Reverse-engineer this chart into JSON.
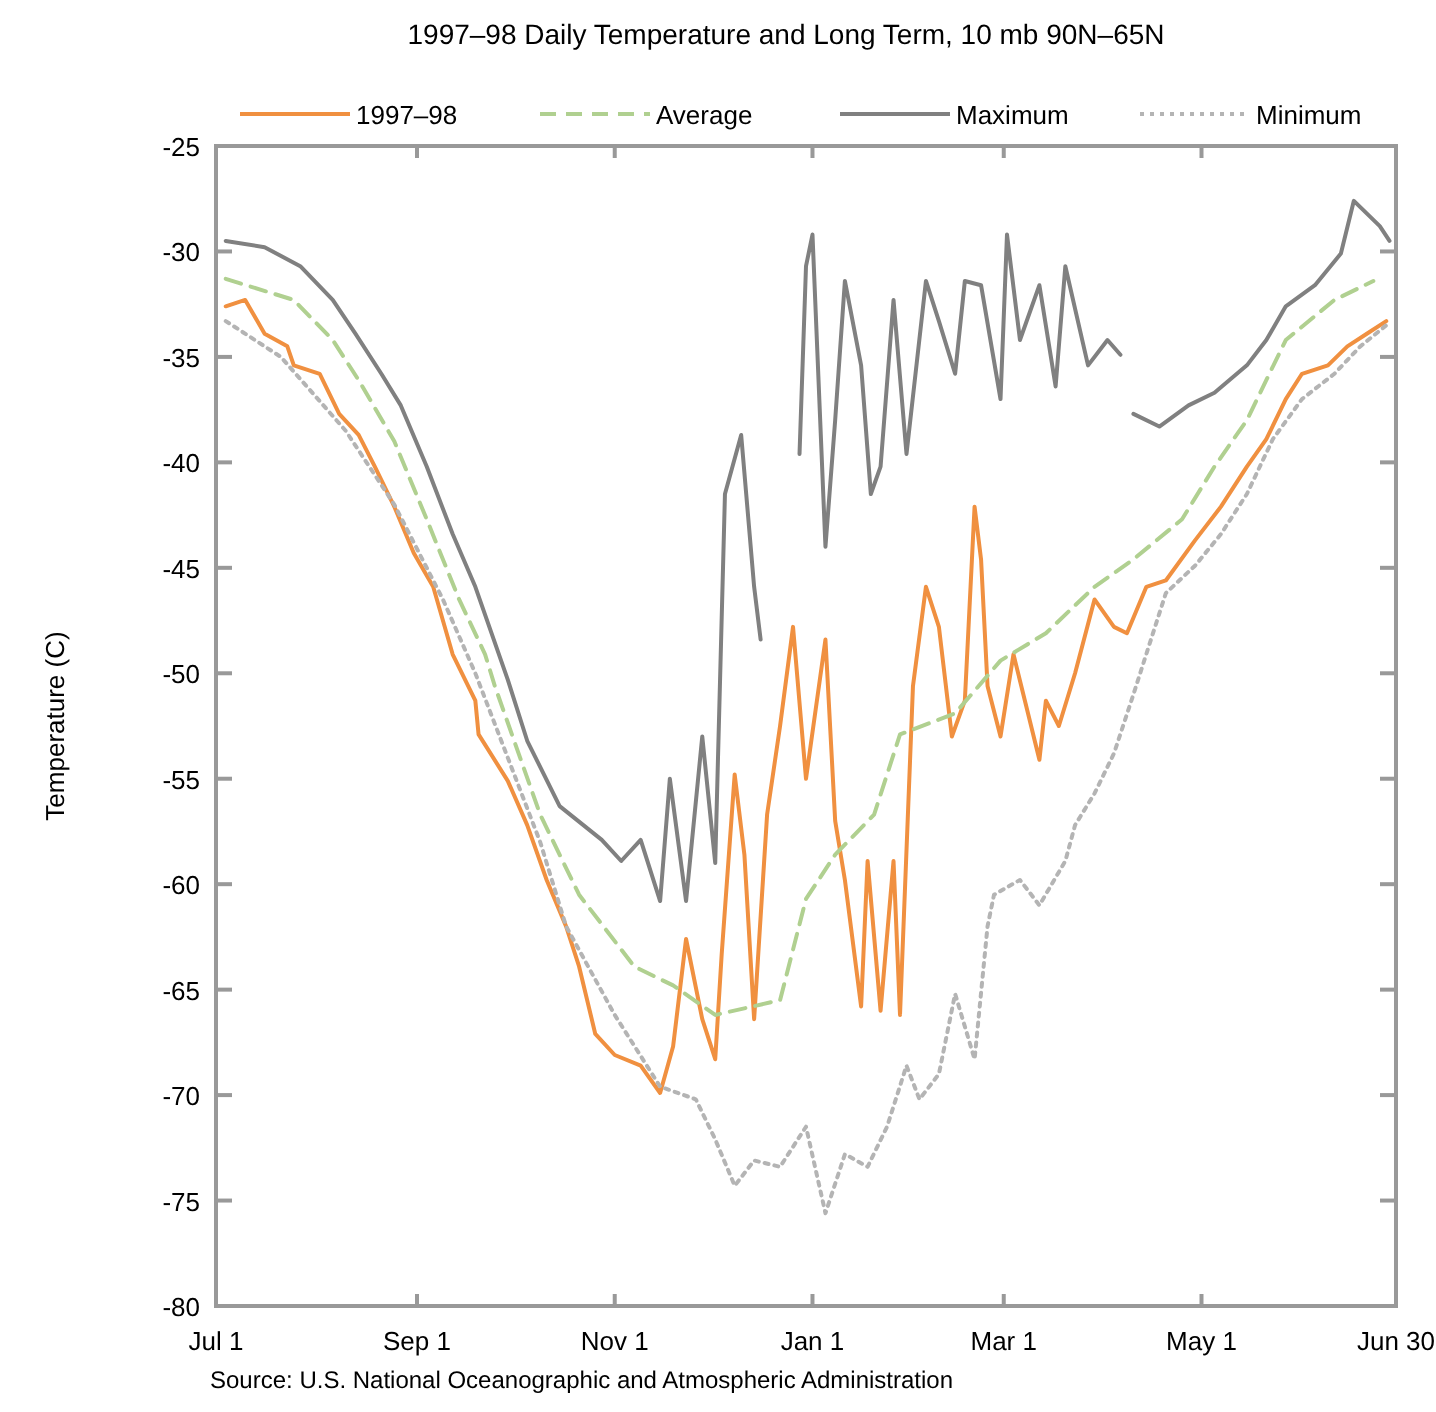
{
  "chart_data": {
    "type": "line",
    "title": "1997–98 Daily Temperature and Long Term,  10 mb   90N–65N",
    "ylabel": "Temperature (C)",
    "annotations": [
      "Source:  U.S. National Oceanographic and Atmospheric Administration"
    ],
    "xlim": [
      "1997-07-01",
      "1998-06-30"
    ],
    "xticks": [
      {
        "value": "1997-07-01",
        "label": "Jul 1"
      },
      {
        "value": "1997-09-01",
        "label": "Sep 1"
      },
      {
        "value": "1997-11-01",
        "label": "Nov 1"
      },
      {
        "value": "1998-01-01",
        "label": "Jan 1"
      },
      {
        "value": "1998-03-01",
        "label": "Mar 1"
      },
      {
        "value": "1998-05-01",
        "label": "May 1"
      },
      {
        "value": "1998-06-30",
        "label": "Jun 30"
      }
    ],
    "ylim": [
      -80,
      -25
    ],
    "yticks": [
      -80,
      -75,
      -70,
      -65,
      -60,
      -55,
      -50,
      -45,
      -40,
      -35,
      -30,
      -25
    ],
    "grid": false,
    "legend": "top",
    "marker": "none",
    "series": [
      {
        "name": "1997–98",
        "color": "#f09040",
        "line_style": "solid",
        "x": [
          "1997-07-04",
          "1997-07-10",
          "1997-07-16",
          "1997-07-23",
          "1997-07-25",
          "1997-08-02",
          "1997-08-08",
          "1997-08-14",
          "1997-08-19",
          "1997-08-25",
          "1997-08-31",
          "1997-09-06",
          "1997-09-12",
          "1997-09-19",
          "1997-09-20",
          "1997-09-29",
          "1997-10-05",
          "1997-10-11",
          "1997-10-17",
          "1997-10-21",
          "1997-10-26",
          "1997-11-01",
          "1997-11-09",
          "1997-11-15",
          "1997-11-19",
          "1997-11-23",
          "1997-11-28",
          "1997-12-02",
          "1997-12-04",
          "1997-12-08",
          "1997-12-11",
          "1997-12-14",
          "1997-12-18",
          "1997-12-22",
          "1997-12-26",
          "1997-12-30",
          "1998-01-05",
          "1998-01-08",
          "1998-01-11",
          "1998-01-16",
          "1998-01-18",
          "1998-01-22",
          "1998-01-26",
          "1998-01-28",
          "1998-02-01",
          "1998-02-05",
          "1998-02-09",
          "1998-02-13",
          "1998-02-17",
          "1998-02-20",
          "1998-02-22",
          "1998-02-24",
          "1998-02-28",
          "1998-03-04",
          "1998-03-08",
          "1998-03-12",
          "1998-03-14",
          "1998-03-18",
          "1998-03-23",
          "1998-03-29",
          "1998-04-04",
          "1998-04-08",
          "1998-04-14",
          "1998-04-20",
          "1998-04-29",
          "1998-05-07",
          "1998-05-15",
          "1998-05-21",
          "1998-05-27",
          "1998-06-01",
          "1998-06-09",
          "1998-06-15",
          "1998-06-21",
          "1998-06-27"
        ],
        "values": [
          -32.6,
          -32.3,
          -33.9,
          -34.5,
          -35.4,
          -35.8,
          -37.7,
          -38.7,
          -40.2,
          -42.1,
          -44.3,
          -45.9,
          -49.1,
          -51.3,
          -52.9,
          -55.1,
          -57.2,
          -59.8,
          -62,
          -63.9,
          -67.1,
          -68.1,
          -68.6,
          -69.9,
          -67.7,
          -62.6,
          -66.4,
          -68.3,
          -63.3,
          -54.8,
          -58.6,
          -66.4,
          -56.7,
          -52.5,
          -47.8,
          -55,
          -48.4,
          -57,
          -59.8,
          -65.8,
          -58.9,
          -66,
          -58.9,
          -66.2,
          -50.6,
          -45.9,
          -47.8,
          -53,
          -51.3,
          -42.1,
          -44.6,
          -50.6,
          -53,
          -49.1,
          -51.6,
          -54.1,
          -51.3,
          -52.5,
          -50,
          -46.5,
          -47.8,
          -48.1,
          -45.9,
          -45.6,
          -43.7,
          -42.1,
          -40.2,
          -38.9,
          -37,
          -35.8,
          -35.4,
          -34.5,
          -33.9,
          -33.3
        ]
      },
      {
        "name": "Average",
        "color": "#b0d090",
        "line_style": "dashed",
        "x": [
          "1997-07-04",
          "1997-07-25",
          "1997-08-06",
          "1997-08-14",
          "1997-08-25",
          "1997-09-04",
          "1997-09-14",
          "1997-09-22",
          "1997-09-25",
          "1997-10-09",
          "1997-10-21",
          "1997-11-07",
          "1997-11-19",
          "1997-12-02",
          "1997-12-22",
          "1997-12-30",
          "1998-01-08",
          "1998-01-20",
          "1998-01-28",
          "1998-02-14",
          "1998-02-28",
          "1998-03-14",
          "1998-03-29",
          "1998-04-10",
          "1998-04-25",
          "1998-05-05",
          "1998-05-15",
          "1998-05-27",
          "1998-06-11",
          "1998-06-23"
        ],
        "values": [
          -31.3,
          -32.3,
          -34.2,
          -36.1,
          -39,
          -42.7,
          -46.5,
          -49.1,
          -50.6,
          -56.7,
          -60.5,
          -63.9,
          -64.8,
          -66.2,
          -65.5,
          -60.7,
          -58.6,
          -56.7,
          -52.9,
          -51.9,
          -49.4,
          -48.1,
          -45.9,
          -44.6,
          -42.7,
          -40.2,
          -38,
          -34.2,
          -32.3,
          -31.4
        ]
      },
      {
        "name": "Maximum",
        "color": "#808080",
        "line_style": "solid",
        "x": [
          "1997-07-04",
          "1997-07-16",
          "1997-07-27",
          "1997-08-06",
          "1997-08-13",
          "1997-08-21",
          "1997-08-27",
          "1997-09-04",
          "1997-09-12",
          "1997-09-19",
          "1997-09-29",
          "1997-10-05",
          "1997-10-15",
          "1997-10-28",
          "1997-11-03",
          "1997-11-09",
          "1997-11-15",
          "1997-11-18",
          "1997-11-23",
          "1997-11-28",
          "1997-12-02",
          "1997-12-05",
          "1997-12-10",
          "1997-12-14",
          "1997-12-16",
          "1997-12-22",
          "1997-12-28",
          "1997-12-30",
          "1998-01-01",
          "1998-01-05",
          "1998-01-08",
          "1998-01-11",
          "1998-01-16",
          "1998-01-19",
          "1998-01-22",
          "1998-01-26",
          "1998-01-30",
          "1998-02-05",
          "1998-02-09",
          "1998-02-14",
          "1998-02-17",
          "1998-02-22",
          "1998-02-28",
          "1998-03-02",
          "1998-03-06",
          "1998-03-12",
          "1998-03-17",
          "1998-03-20",
          "1998-03-27",
          "1998-04-02",
          "1998-04-06",
          "1998-04-08",
          "1998-04-10",
          "1998-04-18",
          "1998-04-27",
          "1998-05-05",
          "1998-05-15",
          "1998-05-21",
          "1998-05-27",
          "1998-06-05",
          "1998-06-13",
          "1998-06-17",
          "1998-06-25",
          "1998-06-28"
        ],
        "values": [
          -29.5,
          -29.8,
          -30.7,
          -32.3,
          -33.9,
          -35.8,
          -37.3,
          -40.2,
          -43.4,
          -45.9,
          -50.3,
          -53.2,
          -56.3,
          -57.9,
          -58.9,
          -57.9,
          -60.8,
          -55,
          -60.8,
          -53,
          -59,
          -41.5,
          -38.7,
          -45.9,
          -48.4,
          null,
          -39.6,
          -30.7,
          -29.2,
          -44,
          -38,
          -31.4,
          -35.4,
          -41.5,
          -40.2,
          -32.3,
          -39.6,
          -31.4,
          -33.3,
          -35.8,
          -31.4,
          -31.6,
          -37,
          -29.2,
          -34.2,
          -31.6,
          -36.4,
          -30.7,
          -35.4,
          -34.2,
          -34.9,
          null,
          -37.7,
          -38.3,
          -37.3,
          -36.7,
          -35.4,
          -34.2,
          -32.6,
          -31.6,
          -30.1,
          -27.6,
          -28.8,
          -29.5
        ]
      },
      {
        "name": "Minimum",
        "color": "#b4b4b4",
        "line_style": "dotted",
        "x": [
          "1997-07-04",
          "1997-07-21",
          "1997-08-10",
          "1997-08-25",
          "1997-09-09",
          "1997-09-19",
          "1997-09-29",
          "1997-10-09",
          "1997-10-17",
          "1997-11-01",
          "1997-11-15",
          "1997-11-26",
          "1997-12-02",
          "1997-12-08",
          "1997-12-14",
          "1997-12-22",
          "1997-12-30",
          "1998-01-05",
          "1998-01-11",
          "1998-01-18",
          "1998-01-24",
          "1998-01-30",
          "1998-02-03",
          "1998-02-09",
          "1998-02-14",
          "1998-02-20",
          "1998-02-24",
          "1998-02-26",
          "1998-03-06",
          "1998-03-12",
          "1998-03-20",
          "1998-03-23",
          "1998-03-29",
          "1998-04-04",
          "1998-04-10",
          "1998-04-20",
          "1998-04-29",
          "1998-05-07",
          "1998-05-15",
          "1998-05-23",
          "1998-06-01",
          "1998-06-11",
          "1998-06-19",
          "1998-06-27"
        ],
        "values": [
          -33.3,
          -35,
          -38.5,
          -42,
          -46.5,
          -50,
          -54,
          -58,
          -62,
          -66.2,
          -69.6,
          -70.2,
          -72.1,
          -74.3,
          -73.1,
          -73.4,
          -71.5,
          -75.6,
          -72.8,
          -73.4,
          -71.5,
          -68.6,
          -70.2,
          -69,
          -65.2,
          -68.3,
          -62,
          -60.5,
          -59.8,
          -61,
          -58.9,
          -57.2,
          -55.7,
          -53.8,
          -51,
          -46.2,
          -44.9,
          -43.4,
          -41.5,
          -38.9,
          -37,
          -35.8,
          -34.5,
          -33.5
        ]
      }
    ]
  }
}
